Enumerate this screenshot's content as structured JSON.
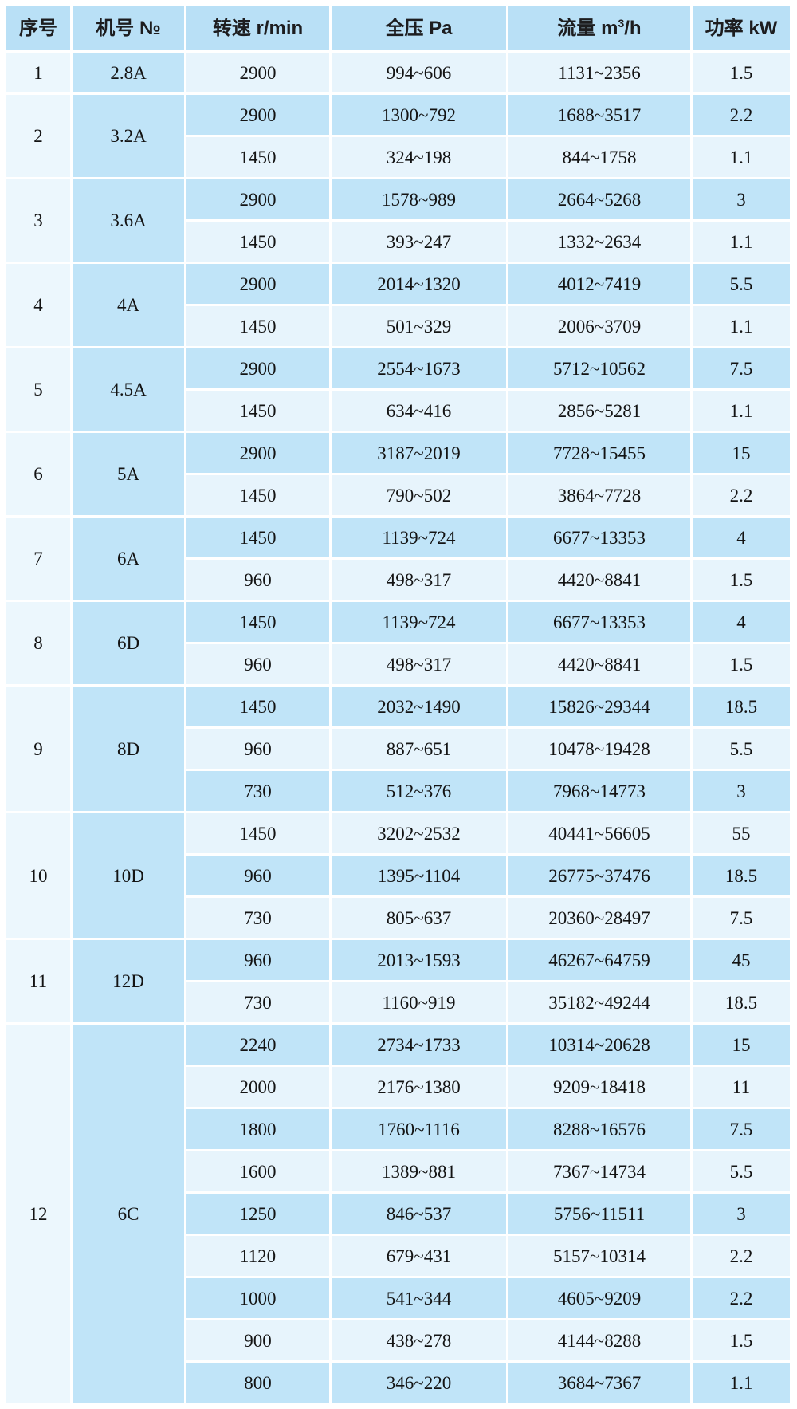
{
  "theme": {
    "header_bg": "#b9e0f6",
    "cell_medium": "#c0e4f8",
    "cell_light": "#e7f4fc",
    "seq_col_bg": "#ecf7fd",
    "gap_color": "#ffffff",
    "text_color": "#131313"
  },
  "table": {
    "columns": [
      {
        "label": "序号"
      },
      {
        "label": "机号 №"
      },
      {
        "label": "转速 r/min"
      },
      {
        "label": "全压 Pa"
      },
      {
        "label": "流量 m",
        "sup": "3",
        "post": "/h"
      },
      {
        "label": "功率 kW"
      }
    ],
    "groups": [
      {
        "seq": "1",
        "model": "2.8A",
        "rows": [
          [
            "2900",
            "994~606",
            "1131~2356",
            "1.5"
          ]
        ]
      },
      {
        "seq": "2",
        "model": "3.2A",
        "rows": [
          [
            "2900",
            "1300~792",
            "1688~3517",
            "2.2"
          ],
          [
            "1450",
            "324~198",
            "844~1758",
            "1.1"
          ]
        ]
      },
      {
        "seq": "3",
        "model": "3.6A",
        "rows": [
          [
            "2900",
            "1578~989",
            "2664~5268",
            "3"
          ],
          [
            "1450",
            "393~247",
            "1332~2634",
            "1.1"
          ]
        ]
      },
      {
        "seq": "4",
        "model": "4A",
        "rows": [
          [
            "2900",
            "2014~1320",
            "4012~7419",
            "5.5"
          ],
          [
            "1450",
            "501~329",
            "2006~3709",
            "1.1"
          ]
        ]
      },
      {
        "seq": "5",
        "model": "4.5A",
        "rows": [
          [
            "2900",
            "2554~1673",
            "5712~10562",
            "7.5"
          ],
          [
            "1450",
            "634~416",
            "2856~5281",
            "1.1"
          ]
        ]
      },
      {
        "seq": "6",
        "model": "5A",
        "rows": [
          [
            "2900",
            "3187~2019",
            "7728~15455",
            "15"
          ],
          [
            "1450",
            "790~502",
            "3864~7728",
            "2.2"
          ]
        ]
      },
      {
        "seq": "7",
        "model": "6A",
        "rows": [
          [
            "1450",
            "1139~724",
            "6677~13353",
            "4"
          ],
          [
            "960",
            "498~317",
            "4420~8841",
            "1.5"
          ]
        ]
      },
      {
        "seq": "8",
        "model": "6D",
        "rows": [
          [
            "1450",
            "1139~724",
            "6677~13353",
            "4"
          ],
          [
            "960",
            "498~317",
            "4420~8841",
            "1.5"
          ]
        ]
      },
      {
        "seq": "9",
        "model": "8D",
        "rows": [
          [
            "1450",
            "2032~1490",
            "15826~29344",
            "18.5"
          ],
          [
            "960",
            "887~651",
            "10478~19428",
            "5.5"
          ],
          [
            "730",
            "512~376",
            "7968~14773",
            "3"
          ]
        ]
      },
      {
        "seq": "10",
        "model": "10D",
        "rows": [
          [
            "1450",
            "3202~2532",
            "40441~56605",
            "55"
          ],
          [
            "960",
            "1395~1104",
            "26775~37476",
            "18.5"
          ],
          [
            "730",
            "805~637",
            "20360~28497",
            "7.5"
          ]
        ]
      },
      {
        "seq": "11",
        "model": "12D",
        "rows": [
          [
            "960",
            "2013~1593",
            "46267~64759",
            "45"
          ],
          [
            "730",
            "1160~919",
            "35182~49244",
            "18.5"
          ]
        ]
      },
      {
        "seq": "12",
        "model": "6C",
        "rows": [
          [
            "2240",
            "2734~1733",
            "10314~20628",
            "15"
          ],
          [
            "2000",
            "2176~1380",
            "9209~18418",
            "11"
          ],
          [
            "1800",
            "1760~1116",
            "8288~16576",
            "7.5"
          ],
          [
            "1600",
            "1389~881",
            "7367~14734",
            "5.5"
          ],
          [
            "1250",
            "846~537",
            "5756~11511",
            "3"
          ],
          [
            "1120",
            "679~431",
            "5157~10314",
            "2.2"
          ],
          [
            "1000",
            "541~344",
            "4605~9209",
            "2.2"
          ],
          [
            "900",
            "438~278",
            "4144~8288",
            "1.5"
          ],
          [
            "800",
            "346~220",
            "3684~7367",
            "1.1"
          ]
        ]
      }
    ]
  }
}
